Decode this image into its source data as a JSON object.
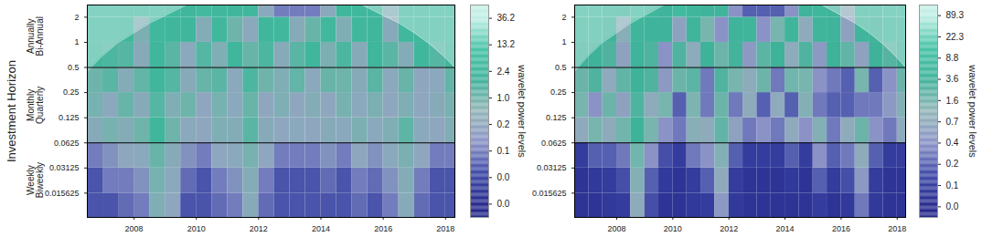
{
  "chart_data": [
    {
      "type": "heatmap",
      "y_label": "Investment Horizon",
      "horizon_labels": [
        [
          "Weekly",
          "Biweekly"
        ],
        [
          "Monthly",
          "Quarterly"
        ],
        [
          "Annually",
          "Bi-Annual"
        ]
      ],
      "log": "y",
      "xlim": [
        2006.5,
        2018.3
      ],
      "ylim": [
        0.008,
        2.8
      ],
      "xticks": [
        2008,
        2010,
        2012,
        2014,
        2016,
        2018
      ],
      "yticks": [
        0.015625,
        0.03125,
        0.0625,
        0.125,
        0.25,
        0.5,
        1,
        2
      ],
      "hlines": [
        0.0625,
        0.5
      ],
      "x_edges": [
        2006.5,
        2007,
        2007.5,
        2008,
        2008.5,
        2009,
        2009.5,
        2010,
        2010.5,
        2011,
        2011.5,
        2012,
        2012.5,
        2013,
        2013.5,
        2014,
        2014.5,
        2015,
        2015.5,
        2016,
        2016.5,
        2017,
        2017.5,
        2018,
        2018.3
      ],
      "y_edges": [
        0.008,
        0.015625,
        0.03125,
        0.0625,
        0.125,
        0.25,
        0.5,
        1,
        2,
        2.8
      ],
      "power": [
        [
          0.05,
          0.05,
          0.08,
          0.1,
          0.6,
          0.2,
          0.05,
          0.05,
          0.08,
          0.1,
          0.4,
          0.08,
          0.05,
          0.05,
          0.05,
          0.05,
          0.05,
          0.08,
          0.05,
          0.1,
          0.4,
          0.08,
          0.05,
          0.05
        ],
        [
          0.05,
          0.1,
          0.1,
          0.15,
          0.8,
          0.3,
          0.08,
          0.05,
          0.1,
          0.15,
          0.5,
          0.1,
          0.05,
          0.05,
          0.05,
          0.08,
          0.05,
          0.1,
          0.08,
          0.15,
          0.5,
          0.1,
          0.05,
          0.05
        ],
        [
          0.1,
          0.15,
          0.2,
          0.3,
          1.2,
          0.4,
          0.15,
          0.1,
          0.2,
          0.3,
          0.8,
          0.2,
          0.1,
          0.1,
          0.1,
          0.15,
          0.1,
          0.2,
          0.15,
          0.3,
          0.7,
          0.2,
          0.1,
          0.1
        ],
        [
          0.4,
          0.8,
          0.5,
          1.0,
          2.4,
          1.0,
          0.3,
          0.2,
          0.6,
          0.5,
          1.6,
          0.4,
          0.2,
          0.3,
          0.2,
          0.4,
          0.3,
          0.7,
          0.3,
          0.6,
          1.5,
          0.3,
          0.2,
          0.6
        ],
        [
          0.8,
          0.3,
          1.2,
          0.4,
          1.8,
          0.6,
          1.0,
          0.2,
          0.8,
          0.3,
          1.2,
          0.2,
          0.6,
          0.2,
          0.5,
          0.2,
          0.8,
          0.3,
          0.7,
          0.2,
          0.6,
          0.2,
          0.4,
          0.8
        ],
        [
          1.0,
          1.6,
          0.5,
          1.4,
          2.4,
          1.8,
          0.4,
          1.2,
          1.6,
          0.3,
          2.0,
          1.0,
          0.6,
          1.4,
          0.3,
          1.2,
          1.0,
          0.4,
          1.6,
          0.3,
          1.2,
          0.2,
          0.3,
          1.4
        ],
        [
          2.4,
          2.0,
          1.8,
          0.4,
          2.4,
          1.6,
          0.3,
          1.8,
          0.6,
          2.4,
          1.2,
          2.0,
          0.4,
          1.6,
          2.4,
          0.7,
          2.0,
          0.4,
          2.4,
          1.6,
          0.5,
          2.4,
          1.8,
          2.4
        ],
        [
          3,
          3,
          2.4,
          0.7,
          3,
          2.4,
          2.4,
          0.5,
          3,
          1.0,
          0.3,
          2.4,
          3,
          0.4,
          1.2,
          3,
          0.6,
          3,
          2.4,
          0.4,
          3,
          2.4,
          3,
          3
        ],
        [
          4,
          4,
          3,
          3,
          4,
          3,
          2.4,
          4,
          3,
          2.4,
          3,
          0.3,
          0.1,
          0.1,
          0.1,
          0.3,
          2.4,
          3,
          2.4,
          0.6,
          3,
          3,
          4,
          4
        ]
      ],
      "coi": {
        "x": [
          2006.5,
          2007,
          2007.5,
          2008,
          2008.5,
          2009,
          2009.5,
          2010,
          2015,
          2015.5,
          2016,
          2016.5,
          2017,
          2017.5,
          2018,
          2018.3
        ],
        "period": [
          0.45,
          0.7,
          1.0,
          1.3,
          1.7,
          2.1,
          2.6,
          3.2,
          3.2,
          2.6,
          2.1,
          1.7,
          1.3,
          0.95,
          0.65,
          0.5
        ]
      },
      "colorbar": {
        "title": "wavelet power levels",
        "ticks": [
          {
            "value": 0,
            "label": "0.0"
          },
          {
            "value": 0.03,
            "label": "0.0"
          },
          0.1,
          0.2,
          {
            "value": 1,
            "label": "1.0"
          },
          2.4,
          13.2,
          36.2
        ]
      }
    },
    {
      "type": "heatmap",
      "log": "y",
      "xlim": [
        2006.5,
        2018.3
      ],
      "ylim": [
        0.008,
        2.8
      ],
      "xticks": [
        2008,
        2010,
        2012,
        2014,
        2016,
        2018
      ],
      "yticks": [
        0.015625,
        0.03125,
        0.0625,
        0.125,
        0.25,
        0.5,
        1,
        2
      ],
      "hlines": [
        0.0625,
        0.5
      ],
      "x_edges": [
        2006.5,
        2007,
        2007.5,
        2008,
        2008.5,
        2009,
        2009.5,
        2010,
        2010.5,
        2011,
        2011.5,
        2012,
        2012.5,
        2013,
        2013.5,
        2014,
        2014.5,
        2015,
        2015.5,
        2016,
        2016.5,
        2017,
        2017.5,
        2018,
        2018.3
      ],
      "y_edges": [
        0.008,
        0.015625,
        0.03125,
        0.0625,
        0.125,
        0.25,
        0.5,
        1,
        2,
        2.8
      ],
      "power": [
        [
          0.05,
          0.05,
          0.08,
          0.1,
          0.8,
          0.15,
          0.05,
          0.05,
          0.08,
          0.1,
          0.5,
          0.08,
          0.05,
          0.05,
          0.05,
          0.05,
          0.05,
          0.1,
          0.05,
          0.08,
          0.3,
          0.08,
          0.05,
          0.05
        ],
        [
          0.05,
          0.08,
          0.1,
          0.15,
          1.2,
          0.2,
          0.08,
          0.05,
          0.1,
          0.2,
          0.7,
          0.1,
          0.05,
          0.05,
          0.05,
          0.08,
          0.05,
          0.2,
          0.1,
          0.15,
          0.5,
          0.1,
          0.05,
          0.05
        ],
        [
          0.1,
          0.2,
          0.2,
          0.3,
          1.8,
          0.4,
          0.15,
          0.1,
          0.3,
          0.4,
          1.2,
          0.2,
          0.1,
          0.1,
          0.1,
          0.2,
          0.1,
          0.4,
          0.2,
          0.3,
          0.8,
          0.2,
          0.1,
          0.1
        ],
        [
          0.7,
          1.6,
          0.8,
          1.8,
          3.6,
          1.6,
          0.4,
          0.3,
          1.0,
          0.8,
          2.4,
          0.6,
          0.3,
          0.4,
          0.3,
          0.7,
          0.4,
          1.2,
          0.3,
          0.8,
          2.0,
          0.4,
          0.3,
          0.8
        ],
        [
          1.6,
          0.4,
          2.0,
          0.6,
          3.0,
          0.8,
          1.6,
          0.2,
          1.4,
          0.3,
          2.0,
          0.3,
          0.8,
          0.2,
          0.7,
          0.2,
          1.2,
          0.3,
          0.2,
          0.2,
          0.3,
          0.3,
          0.5,
          1.2
        ],
        [
          2.0,
          3.0,
          0.7,
          2.4,
          3.6,
          3.0,
          0.5,
          2.0,
          2.6,
          0.3,
          3.0,
          1.6,
          0.8,
          2.0,
          0.3,
          1.8,
          1.6,
          0.4,
          0.3,
          0.2,
          1.6,
          0.2,
          0.4,
          2.0
        ],
        [
          4,
          3.6,
          3,
          0.6,
          4,
          3,
          0.4,
          3,
          0.8,
          3.6,
          2,
          3.4,
          0.5,
          2.6,
          3.6,
          0.8,
          3,
          0.5,
          3.6,
          2.4,
          0.6,
          3.6,
          2.8,
          4
        ],
        [
          6,
          6,
          4,
          1.0,
          5,
          4,
          4,
          0.6,
          5,
          1.6,
          0.4,
          4,
          5,
          0.4,
          1.6,
          5,
          0.8,
          5,
          4,
          0.6,
          5,
          4,
          6,
          6
        ],
        [
          8,
          8,
          6,
          5,
          8,
          6,
          4,
          8,
          6,
          4,
          5,
          0.4,
          0.2,
          0.2,
          0.2,
          0.4,
          4,
          6,
          4,
          0.8,
          6,
          6,
          8,
          8
        ]
      ],
      "coi": {
        "x": [
          2006.5,
          2007,
          2007.5,
          2008,
          2008.5,
          2009,
          2009.5,
          2010,
          2015,
          2015.5,
          2016,
          2016.5,
          2017,
          2017.5,
          2018,
          2018.3
        ],
        "period": [
          0.45,
          0.7,
          1.0,
          1.3,
          1.7,
          2.1,
          2.6,
          3.2,
          3.2,
          2.6,
          2.1,
          1.7,
          1.3,
          0.95,
          0.65,
          0.5
        ]
      },
      "colorbar": {
        "title": "wavelet power levels",
        "ticks": [
          {
            "value": 0,
            "label": "0.0"
          },
          0.1,
          0.2,
          0.4,
          0.7,
          1.6,
          3.6,
          8.8,
          22.3,
          89.3
        ]
      }
    }
  ]
}
